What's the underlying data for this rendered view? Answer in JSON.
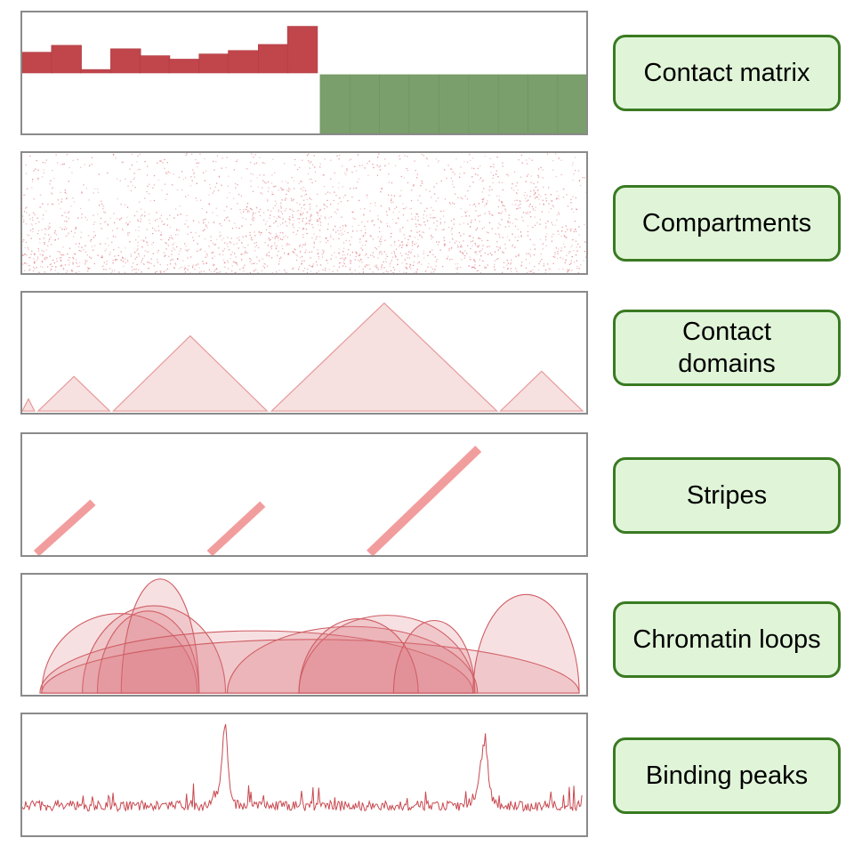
{
  "colors": {
    "track_red": "#c0464c",
    "compartment_green": "#7a9f6c",
    "feature_pink": "#f08c8c",
    "label_fill": "#e0f5d8",
    "label_border": "#3a7a22",
    "panel_border": "#8a8a8a"
  },
  "tracks": [
    {
      "id": "compartments-track",
      "label": "Contact matrix"
    },
    {
      "id": "contact-matrix-track",
      "label": "Compartments"
    },
    {
      "id": "contact-domains-track",
      "label": "Contact\ndomains"
    },
    {
      "id": "stripes-track",
      "label": "Stripes"
    },
    {
      "id": "chromatin-loops-track",
      "label": "Chromatin loops"
    },
    {
      "id": "binding-peaks-track",
      "label": "Binding peaks"
    }
  ]
}
